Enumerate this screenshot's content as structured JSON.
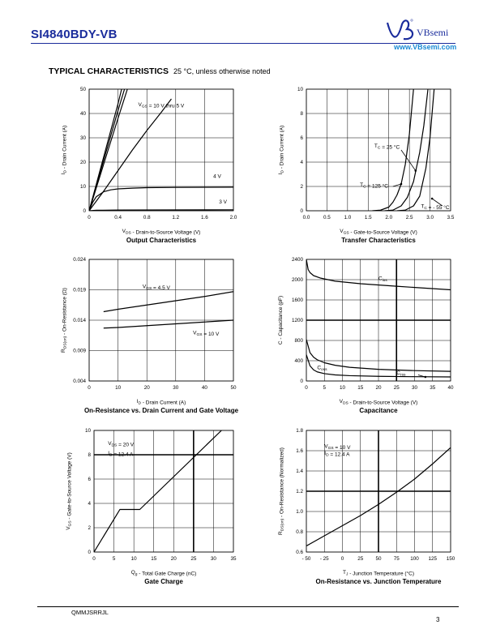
{
  "header": {
    "part_number": "SI4840BDY-VB",
    "brand": "VBsemi",
    "website": "www.VBsemi.com"
  },
  "section": {
    "title": "TYPICAL CHARACTERISTICS",
    "subtitle": "25 °C, unless otherwise noted"
  },
  "footer": {
    "doc_code": "QMMJSRRJL",
    "page": "3"
  },
  "chart_data": [
    {
      "id": "output",
      "type": "line",
      "title": "Output Characteristics",
      "xlabel": "V_DS - Drain-to-Source Voltage (V)",
      "ylabel": "I_D - Drain Current (A)",
      "xlim": [
        0,
        2.0
      ],
      "ylim": [
        0,
        50
      ],
      "xticks": [
        0,
        0.4,
        0.8,
        1.2,
        1.6,
        2.0
      ],
      "xtick_labels": [
        "0",
        "0.4",
        "0.8",
        "1.2",
        "1.6",
        "2.0"
      ],
      "yticks": [
        0,
        10,
        20,
        30,
        40,
        50
      ],
      "ytick_labels": [
        "0",
        "10",
        "20",
        "30",
        "40",
        "50"
      ],
      "grid": true,
      "series": [
        {
          "name": "V_GS = 10 V thru 5 V",
          "x": [
            0,
            0.1,
            0.2,
            0.3,
            0.4,
            0.45
          ],
          "y": [
            0,
            11,
            22,
            33,
            44,
            50
          ]
        },
        {
          "name": "",
          "x": [
            0,
            0.1,
            0.2,
            0.3,
            0.4,
            0.49
          ],
          "y": [
            0,
            10.3,
            20.6,
            30.9,
            41.2,
            50
          ]
        },
        {
          "name": "",
          "x": [
            0,
            0.1,
            0.2,
            0.3,
            0.4,
            0.53
          ],
          "y": [
            0,
            9.5,
            19,
            28.5,
            38,
            50
          ]
        },
        {
          "name": "",
          "x": [
            0,
            0.2,
            0.4,
            0.6,
            0.8,
            1.0,
            1.14
          ],
          "y": [
            0,
            8,
            16.5,
            25,
            33,
            40.5,
            46
          ]
        },
        {
          "name": "4 V",
          "x": [
            0,
            0.05,
            0.1,
            0.2,
            0.3,
            0.4,
            0.6,
            0.8,
            1.2,
            1.6,
            2.0
          ],
          "y": [
            0,
            3.5,
            5.8,
            7.8,
            8.6,
            9.0,
            9.3,
            9.5,
            9.6,
            9.65,
            9.7
          ]
        },
        {
          "name": "3 V",
          "x": [
            0,
            0.1,
            0.4,
            1.0,
            2.0
          ],
          "y": [
            0,
            0.2,
            0.3,
            0.35,
            0.4
          ]
        }
      ],
      "annotations": [
        "V_GS = 10 V thru 5 V",
        "4 V",
        "3 V"
      ]
    },
    {
      "id": "transfer",
      "type": "line",
      "title": "Transfer Characteristics",
      "xlabel": "V_GS - Gate-to-Source Voltage (V)",
      "ylabel": "I_D - Drain Current (A)",
      "xlim": [
        0,
        3.5
      ],
      "ylim": [
        0,
        10
      ],
      "xticks": [
        0,
        0.5,
        1.0,
        1.5,
        2.0,
        2.5,
        3.0,
        3.5
      ],
      "xtick_labels": [
        "0.0",
        "0.5",
        "1.0",
        "1.5",
        "2.0",
        "2.5",
        "3.0",
        "3.5"
      ],
      "yticks": [
        0,
        2,
        4,
        6,
        8,
        10
      ],
      "ytick_labels": [
        "0",
        "2",
        "4",
        "6",
        "8",
        "10"
      ],
      "grid": true,
      "series": [
        {
          "name": "T_C = 125 °C",
          "x": [
            1.6,
            1.8,
            2.0,
            2.1,
            2.2,
            2.3,
            2.4,
            2.5,
            2.6
          ],
          "y": [
            0,
            0.05,
            0.3,
            0.7,
            1.3,
            2.2,
            3.8,
            6.3,
            10
          ]
        },
        {
          "name": "T_C = 25 °C",
          "x": [
            1.9,
            2.1,
            2.3,
            2.45,
            2.6,
            2.75,
            2.85,
            2.95
          ],
          "y": [
            0,
            0.05,
            0.4,
            1.1,
            2.4,
            4.8,
            7.0,
            10
          ]
        },
        {
          "name": "T_C = - 55 °C",
          "x": [
            2.2,
            2.4,
            2.6,
            2.75,
            2.9,
            3.0,
            3.1
          ],
          "y": [
            0,
            0.05,
            0.4,
            1.2,
            3.5,
            6.0,
            10
          ]
        }
      ],
      "annotations": [
        "T_C = 25 °C",
        "T_C = 125 °C",
        "T_C = - 55 °C"
      ]
    },
    {
      "id": "rdson",
      "type": "line",
      "title": "On-Resistance vs. Drain Current and Gate Voltage",
      "xlabel": "I_D - Drain Current (A)",
      "ylabel": "R_DS(on) - On-Resistance (Ω)",
      "xlim": [
        0,
        50
      ],
      "ylim": [
        0.004,
        0.024
      ],
      "xticks": [
        0,
        10,
        20,
        30,
        40,
        50
      ],
      "xtick_labels": [
        "0",
        "10",
        "20",
        "30",
        "40",
        "50"
      ],
      "yticks": [
        0.004,
        0.009,
        0.014,
        0.019,
        0.024
      ],
      "ytick_labels": [
        "0.004",
        "0.009",
        "0.014",
        "0.019",
        "0.024"
      ],
      "grid": true,
      "series": [
        {
          "name": "V_GS = 4.5 V",
          "x": [
            5,
            10,
            20,
            30,
            40,
            50
          ],
          "y": [
            0.0154,
            0.0158,
            0.0165,
            0.0172,
            0.0179,
            0.0187
          ]
        },
        {
          "name": "V_GS = 10 V",
          "x": [
            5,
            10,
            20,
            30,
            40,
            50
          ],
          "y": [
            0.0127,
            0.0128,
            0.0131,
            0.0134,
            0.0137,
            0.014
          ]
        }
      ],
      "annotations": [
        "V_GS = 4.5 V",
        "V_GS = 10 V"
      ]
    },
    {
      "id": "capacitance",
      "type": "line",
      "title": "Capacitance",
      "xlabel": "V_DS - Drain-to-Source Voltage (V)",
      "ylabel": "C - Capacitance (pF)",
      "xlim": [
        0,
        40
      ],
      "ylim": [
        0,
        2400
      ],
      "xticks": [
        0,
        5,
        10,
        15,
        20,
        25,
        30,
        35,
        40
      ],
      "xtick_labels": [
        "0",
        "5",
        "10",
        "15",
        "20",
        "25",
        "30",
        "35",
        "40"
      ],
      "yticks": [
        0,
        400,
        800,
        1200,
        1600,
        2000,
        2400
      ],
      "ytick_labels": [
        "0",
        "400",
        "800",
        "1200",
        "1600",
        "2000",
        "2400"
      ],
      "grid": true,
      "series": [
        {
          "name": "C_iss",
          "x": [
            0,
            0.5,
            1,
            2,
            4,
            8,
            15,
            25,
            40
          ],
          "y": [
            2400,
            2200,
            2140,
            2080,
            2030,
            1970,
            1920,
            1870,
            1800
          ]
        },
        {
          "name": "C_oss",
          "x": [
            0,
            1,
            2,
            3,
            5,
            8,
            12,
            20,
            30,
            40
          ],
          "y": [
            820,
            560,
            470,
            420,
            360,
            310,
            270,
            230,
            205,
            190
          ]
        },
        {
          "name": "C_rss",
          "x": [
            0,
            1,
            2,
            3,
            5,
            8,
            12,
            20,
            30,
            40
          ],
          "y": [
            520,
            300,
            220,
            180,
            145,
            120,
            105,
            92,
            85,
            80
          ]
        }
      ],
      "annotations": [
        "C_iss",
        "C_oss",
        "C_rss"
      ]
    },
    {
      "id": "gatecharge",
      "type": "line",
      "title": "Gate Charge",
      "xlabel": "Q_g - Total Gate Charge (nC)",
      "ylabel": "V_GS - Gate-to-Source Voltage (V)",
      "xlim": [
        0,
        35
      ],
      "ylim": [
        0,
        10
      ],
      "xticks": [
        0,
        5,
        10,
        15,
        20,
        25,
        30,
        35
      ],
      "xtick_labels": [
        "0",
        "5",
        "10",
        "15",
        "20",
        "25",
        "30",
        "35"
      ],
      "yticks": [
        0,
        2,
        4,
        6,
        8,
        10
      ],
      "ytick_labels": [
        "0",
        "2",
        "4",
        "6",
        "8",
        "10"
      ],
      "grid": true,
      "series": [
        {
          "name": "V_DS = 20 V, I_D = 12.4 A",
          "x": [
            0,
            6.5,
            11.5,
            32
          ],
          "y": [
            0,
            3.5,
            3.5,
            10
          ]
        }
      ],
      "annotations": [
        "V_DS = 20 V",
        "I_D = 12.4 A"
      ]
    },
    {
      "id": "rdson_temp",
      "type": "line",
      "title": "On-Resistance vs. Junction Temperature",
      "xlabel": "T_J - Junction Temperature (°C)",
      "ylabel": "R_DS(on) - On-Resistance (Normalized)",
      "xlim": [
        -50,
        150
      ],
      "ylim": [
        0.6,
        1.8
      ],
      "xticks": [
        -50,
        -25,
        0,
        25,
        50,
        75,
        100,
        125,
        150
      ],
      "xtick_labels": [
        "- 50",
        "- 25",
        "0",
        "25",
        "50",
        "75",
        "100",
        "125",
        "150"
      ],
      "yticks": [
        0.6,
        0.8,
        1.0,
        1.2,
        1.4,
        1.6,
        1.8
      ],
      "ytick_labels": [
        "0.6",
        "0.8",
        "1.0",
        "1.2",
        "1.4",
        "1.6",
        "1.8"
      ],
      "grid": true,
      "series": [
        {
          "name": "V_GS = 10 V, I_D = 12.4 A",
          "x": [
            -50,
            -25,
            0,
            25,
            50,
            75,
            100,
            125,
            150
          ],
          "y": [
            0.66,
            0.76,
            0.86,
            0.96,
            1.07,
            1.19,
            1.32,
            1.47,
            1.63
          ]
        }
      ],
      "annotations": [
        "V_GS = 10 V",
        "I_D = 12.4 A"
      ]
    }
  ]
}
